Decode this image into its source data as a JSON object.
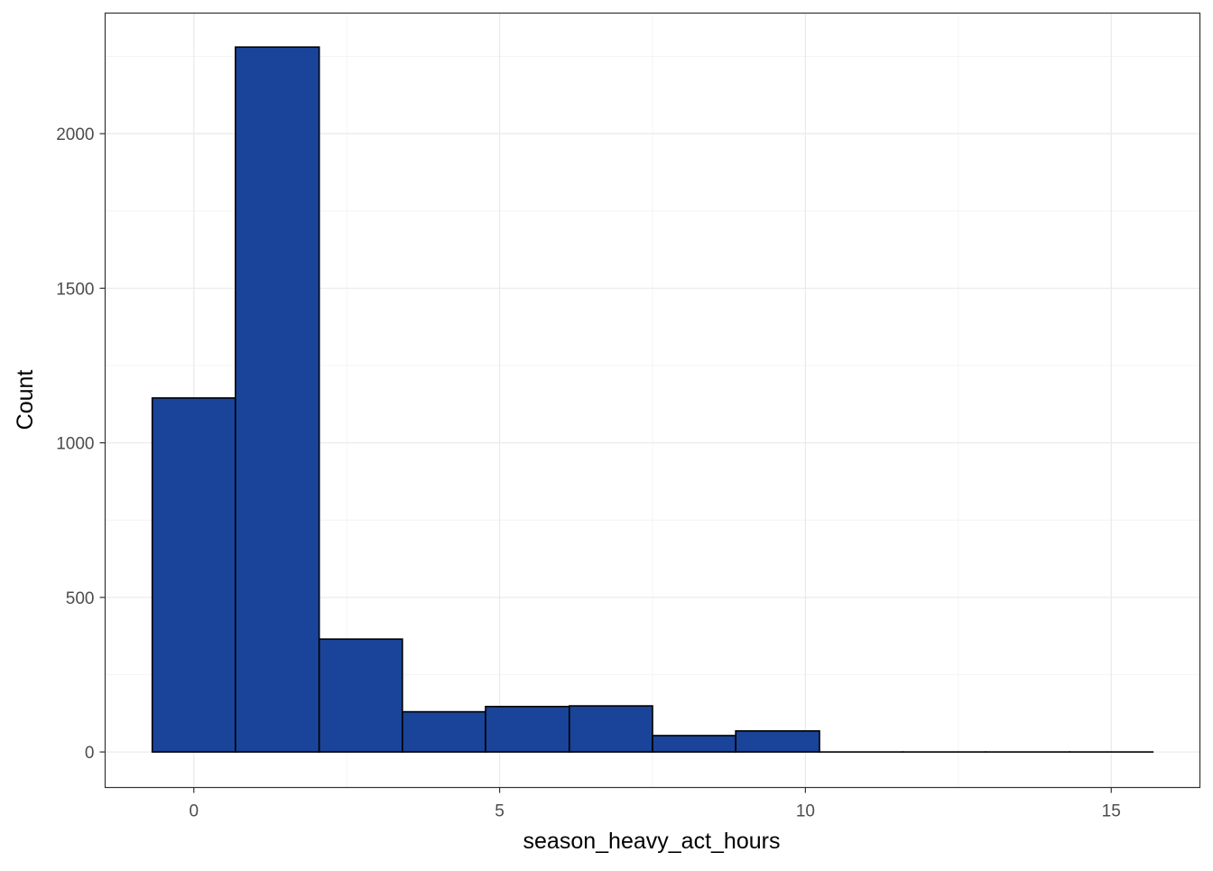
{
  "chart_data": {
    "type": "bar",
    "subtype": "histogram",
    "title": "",
    "xlabel": "season_heavy_act_hours",
    "ylabel": "Count",
    "xlim": [
      -1.45,
      16.45
    ],
    "ylim": [
      -115,
      2390
    ],
    "xticks": [
      0,
      5,
      10,
      15
    ],
    "xtick_labels": [
      "0",
      "5",
      "10",
      "15"
    ],
    "yticks": [
      0,
      500,
      1000,
      1500,
      2000
    ],
    "ytick_labels": [
      "0",
      "500",
      "1000",
      "1500",
      "2000"
    ],
    "x_minor_breaks": [
      2.5,
      7.5,
      12.5
    ],
    "y_minor_breaks": [
      250,
      750,
      1250,
      1750,
      2250
    ],
    "grid": true,
    "legend": "none",
    "bins": [
      {
        "x0": -0.68,
        "x1": 0.68,
        "count": 1145
      },
      {
        "x0": 0.68,
        "x1": 2.05,
        "count": 2280
      },
      {
        "x0": 2.05,
        "x1": 3.41,
        "count": 365
      },
      {
        "x0": 3.41,
        "x1": 4.77,
        "count": 130
      },
      {
        "x0": 4.77,
        "x1": 6.14,
        "count": 147
      },
      {
        "x0": 6.14,
        "x1": 7.5,
        "count": 149
      },
      {
        "x0": 7.5,
        "x1": 8.86,
        "count": 53
      },
      {
        "x0": 8.86,
        "x1": 10.23,
        "count": 68
      },
      {
        "x0": 10.23,
        "x1": 11.59,
        "count": 0
      },
      {
        "x0": 11.59,
        "x1": 12.95,
        "count": 0
      },
      {
        "x0": 12.95,
        "x1": 14.32,
        "count": 0
      },
      {
        "x0": 14.32,
        "x1": 15.68,
        "count": 0
      }
    ],
    "colors": {
      "bar_fill": "#1A4499",
      "bar_outline": "#000000",
      "panel_border": "#333333",
      "grid_major": "#EBEBEB",
      "grid_minor": "#F4F4F4",
      "tick_text": "#4D4D4D"
    }
  }
}
